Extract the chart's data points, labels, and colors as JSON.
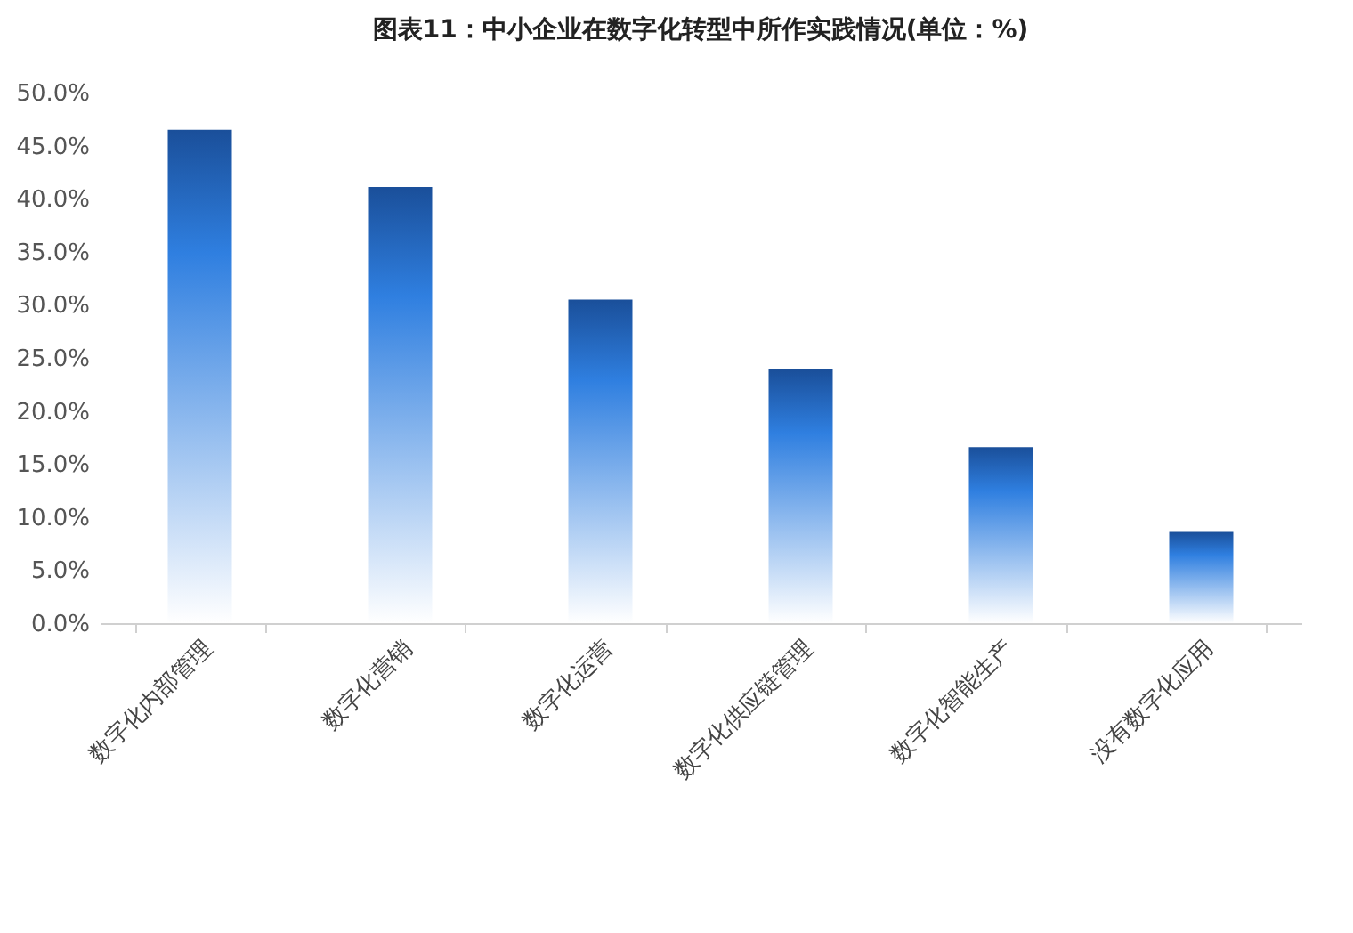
{
  "chart_data": {
    "type": "bar",
    "title": "图表11：中小企业在数字化转型中所作实践情况(单位：%)",
    "categories": [
      "数字化内部管理",
      "数字化营销",
      "数字化运营",
      "数字化供应链管理",
      "数字化智能生产",
      "没有数字化应用"
    ],
    "values": [
      46.5,
      41.1,
      30.5,
      23.9,
      16.6,
      8.6
    ],
    "color": "#2f7fe0",
    "ylim": [
      0,
      50
    ],
    "yticks": [
      {
        "value": 0,
        "label": "0.0%"
      },
      {
        "value": 5,
        "label": "5.0%"
      },
      {
        "value": 10,
        "label": "10.0%"
      },
      {
        "value": 15,
        "label": "15.0%"
      },
      {
        "value": 20,
        "label": "20.0%"
      },
      {
        "value": 25,
        "label": "25.0%"
      },
      {
        "value": 30,
        "label": "30.0%"
      },
      {
        "value": 35,
        "label": "35.0%"
      },
      {
        "value": 40,
        "label": "40.0%"
      },
      {
        "value": 45,
        "label": "45.0%"
      },
      {
        "value": 50,
        "label": "50.0%"
      }
    ],
    "grid": false
  }
}
